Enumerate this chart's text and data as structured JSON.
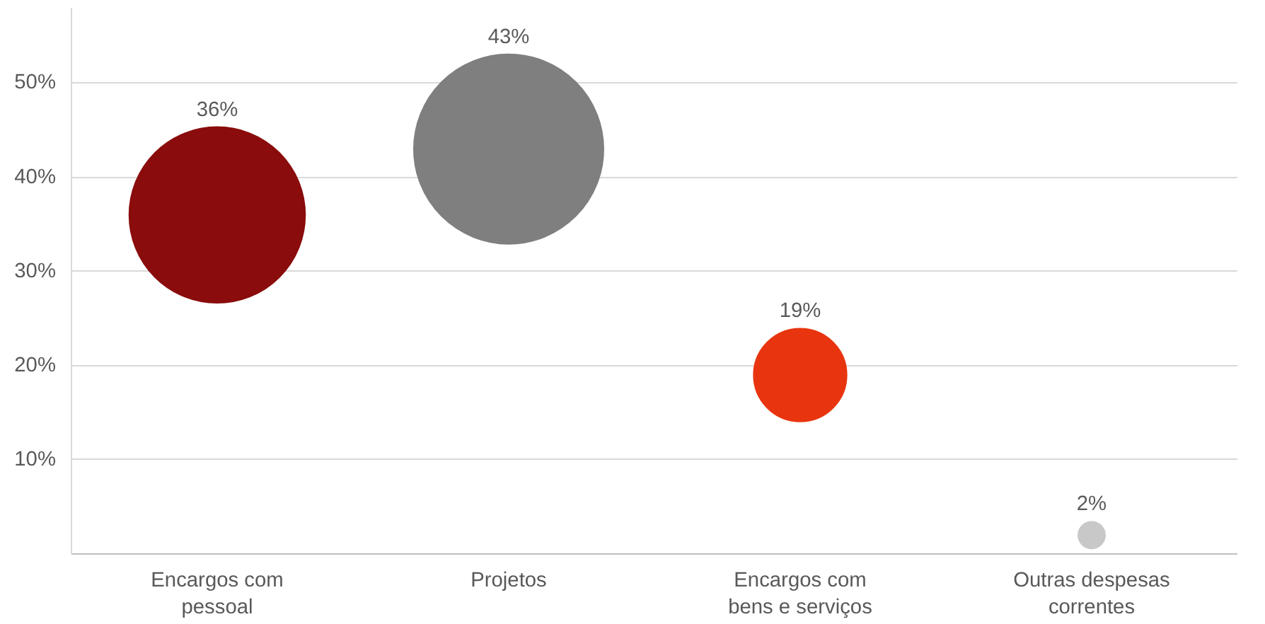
{
  "chart_data": {
    "type": "bubble",
    "categories": [
      "Encargos com pessoal",
      "Projetos",
      "Encargos com bens e serviços",
      "Outras despesas correntes"
    ],
    "values": [
      36,
      43,
      19,
      2
    ],
    "sizes": [
      0.86,
      1,
      0.24,
      0.02
    ],
    "colors": [
      "#8a0c0c",
      "#7f7f7f",
      "#e8350f",
      "#c8c8c8"
    ],
    "value_labels": [
      "36%",
      "43%",
      "19%",
      "2%"
    ],
    "ylim": [
      0,
      58
    ],
    "yticks": [
      {
        "value": 10,
        "label": "10%"
      },
      {
        "value": 20,
        "label": "20%"
      },
      {
        "value": 30,
        "label": "30%"
      },
      {
        "value": 40,
        "label": "40%"
      },
      {
        "value": 50,
        "label": "50%"
      }
    ],
    "grid": "y"
  }
}
